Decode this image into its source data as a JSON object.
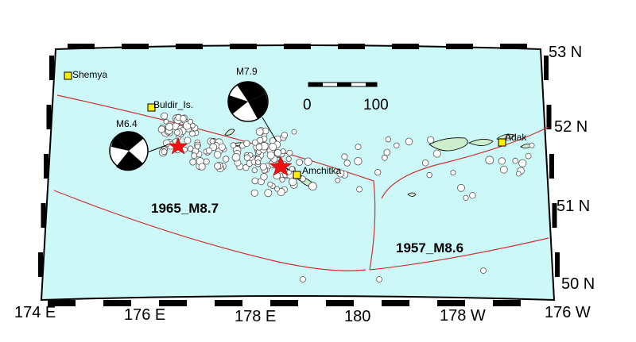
{
  "map": {
    "lat_labels": [
      "53 N",
      "52 N",
      "51 N",
      "50 N"
    ],
    "lon_labels": [
      "174 E",
      "176 E",
      "178 E",
      "180",
      "178 W",
      "176 W"
    ],
    "scale_bar": {
      "start_label": "0",
      "end_label": "100"
    },
    "places": [
      {
        "name": "Shemya"
      },
      {
        "name": "Buldir_Is."
      },
      {
        "name": "Amchitka"
      },
      {
        "name": "Adak"
      }
    ],
    "events": {
      "rupture_1965": "1965_M8.7",
      "rupture_1957": "1957_M8.6",
      "mechanism_a": "M6.4",
      "mechanism_b": "M7.9"
    },
    "colors": {
      "ocean": "#ccf8f8",
      "land": "#cceecc",
      "rupture_line": "#cc3333",
      "epicenter_star": "#ee1111",
      "station": "#ffee00",
      "frame": "#000000"
    }
  }
}
